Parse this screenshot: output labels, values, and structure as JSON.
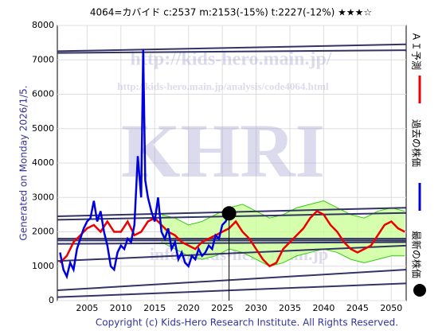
{
  "chart_data": {
    "type": "line",
    "title": "4064=カバイド    c:2537  m:2153(-15%)  t:2227(-12%)  ★★★☆",
    "y_label": "Generated on Monday 2026/1/5.",
    "footer": "Copyright (c) Kids-Hero Research Institute. All Rights Reserved.",
    "watermarks": [
      "http://kids-hero.main.jp/",
      "http://kids-hero.main.jp/analysis/code4064.html",
      "KHRI",
      "info@kids-hero.main.jp"
    ],
    "xlim": [
      2000.6,
      2052.2
    ],
    "ylim": [
      0,
      8000
    ],
    "xticks": [
      2005,
      2010,
      2015,
      2020,
      2025,
      2030,
      2035,
      2040,
      2045,
      2050
    ],
    "yticks": [
      0,
      1000,
      2000,
      3000,
      4000,
      5000,
      6000,
      7000,
      8000
    ],
    "grid": true,
    "band": {
      "color": "#33cc11",
      "fill": "#ccff99",
      "x": [
        2016,
        2018,
        2020,
        2022,
        2024,
        2026,
        2028,
        2030,
        2032,
        2034,
        2036,
        2038,
        2040,
        2042,
        2044,
        2046,
        2048,
        2050,
        2052
      ],
      "upper": [
        2500,
        2400,
        2200,
        2300,
        2500,
        2700,
        2800,
        2600,
        2400,
        2500,
        2700,
        2800,
        2900,
        2700,
        2500,
        2400,
        2600,
        2700,
        2600
      ],
      "lower": [
        1700,
        1500,
        1300,
        1200,
        1300,
        1500,
        1400,
        1200,
        1000,
        1100,
        1300,
        1400,
        1500,
        1400,
        1200,
        1100,
        1200,
        1300,
        1300
      ]
    },
    "trend_lines": {
      "color": "#333366",
      "x": [
        2000.6,
        2052.2
      ],
      "values": [
        [
          7250,
          7450
        ],
        [
          7200,
          7280
        ],
        [
          2450,
          2700
        ],
        [
          2350,
          2550
        ],
        [
          1800,
          1800
        ],
        [
          1750,
          1750
        ],
        [
          1650,
          1700
        ],
        [
          1150,
          1600
        ],
        [
          300,
          900
        ],
        [
          100,
          500
        ]
      ]
    },
    "series": [
      {
        "name": "ＡＩ予測",
        "color": "#ee0000",
        "x": [
          2001,
          2002,
          2003,
          2004,
          2005,
          2006,
          2007,
          2008,
          2009,
          2010,
          2011,
          2012,
          2013,
          2014,
          2015,
          2016,
          2017,
          2018,
          2019,
          2020,
          2021,
          2022,
          2023,
          2024,
          2025,
          2026,
          2027,
          2028,
          2029,
          2030,
          2031,
          2032,
          2033,
          2034,
          2035,
          2036,
          2037,
          2038,
          2039,
          2040,
          2041,
          2042,
          2043,
          2044,
          2045,
          2046,
          2047,
          2048,
          2049,
          2050,
          2051,
          2052
        ],
        "values": [
          1100,
          1300,
          1700,
          1900,
          2100,
          2200,
          2000,
          2300,
          2000,
          2000,
          2300,
          1900,
          2000,
          2300,
          2400,
          2200,
          2000,
          1900,
          1700,
          1600,
          1500,
          1700,
          1800,
          1900,
          2000,
          2100,
          2300,
          2000,
          1800,
          1500,
          1200,
          1000,
          1100,
          1500,
          1700,
          1900,
          2100,
          2400,
          2600,
          2500,
          2200,
          2000,
          1700,
          1500,
          1400,
          1500,
          1600,
          1900,
          2200,
          2300,
          2100,
          2000
        ]
      },
      {
        "name": "過去の株価",
        "color": "#0000dd",
        "x": [
          2001,
          2001.5,
          2002,
          2002.5,
          2003,
          2003.5,
          2004,
          2004.5,
          2005,
          2005.5,
          2006,
          2006.5,
          2007,
          2007.5,
          2008,
          2008.5,
          2009,
          2009.5,
          2010,
          2010.5,
          2011,
          2011.5,
          2012,
          2012.5,
          2013,
          2013.3,
          2013.6,
          2014,
          2014.5,
          2015,
          2015.5,
          2016,
          2016.5,
          2017,
          2017.5,
          2018,
          2018.5,
          2019,
          2019.5,
          2020,
          2020.5,
          2021,
          2021.5,
          2022,
          2022.5,
          2023,
          2023.5,
          2024,
          2024.5,
          2025,
          2025.5,
          2026
        ],
        "values": [
          1400,
          900,
          700,
          1100,
          900,
          1500,
          1800,
          2100,
          2300,
          2400,
          2900,
          2300,
          2600,
          2000,
          1600,
          1000,
          900,
          1400,
          1600,
          1500,
          1800,
          1700,
          2200,
          4200,
          3000,
          7300,
          3500,
          3000,
          2600,
          2300,
          3000,
          2000,
          1800,
          2100,
          1500,
          1700,
          1200,
          1400,
          1100,
          1000,
          1300,
          1200,
          1500,
          1300,
          1400,
          1600,
          1500,
          1900,
          1800,
          2200,
          2300,
          2537
        ]
      },
      {
        "name": "最新の株価",
        "color": "#000000",
        "x": [
          2026
        ],
        "values": [
          2537
        ]
      }
    ]
  }
}
